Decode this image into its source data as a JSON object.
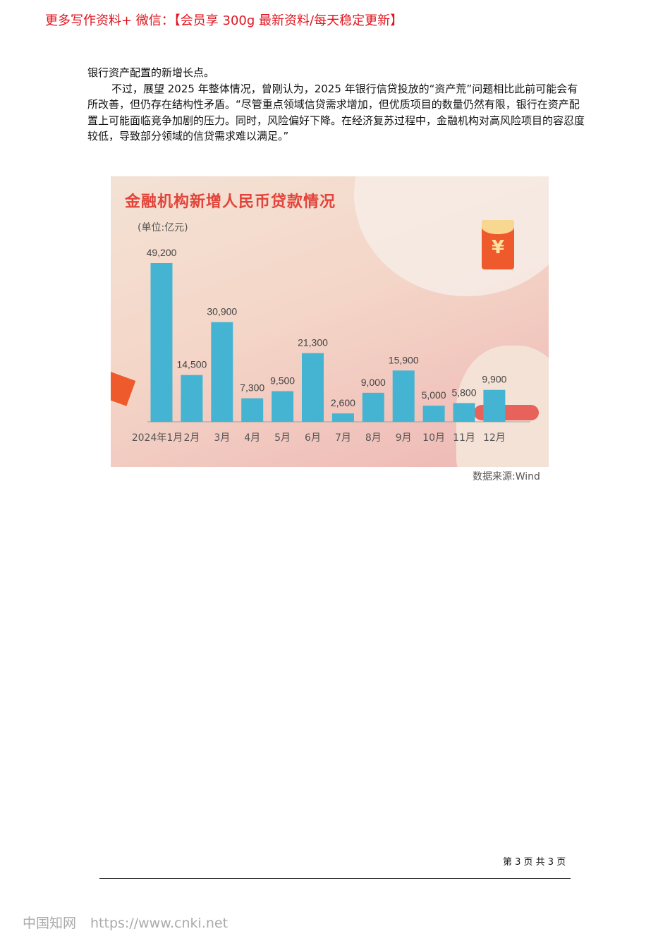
{
  "banner": "更多写作资料+ 微信：【会员享 300g 最新资料/每天稳定更新】",
  "body": {
    "p1": "银行资产配置的新增长点。",
    "p2": "不过，展望 2025 年整体情况，曾刚认为，2025 年银行信贷投放的“资产荒”问题相比此前可能会有所改善，但仍存在结构性矛盾。“尽管重点领域信贷需求增加，但优质项目的数量仍然有限，银行在资产配置上可能面临竞争加剧的压力。同时，风险偏好下降。在经济复苏过程中，金融机构对高风险项目的容忍度较低，导致部分领域的信贷需求难以满足。”"
  },
  "chart_data": {
    "type": "bar",
    "title": "金融机构新增人民币贷款情况",
    "unit_label": "(单位:亿元)",
    "categories": [
      "2024年1月",
      "2月",
      "3月",
      "4月",
      "5月",
      "6月",
      "7月",
      "8月",
      "9月",
      "10月",
      "11月",
      "12月"
    ],
    "values": [
      49200,
      14500,
      30900,
      7300,
      9500,
      21300,
      2600,
      9000,
      15900,
      5000,
      5800,
      9900
    ],
    "labels": [
      "49,200",
      "14,500",
      "30,900",
      "7,300",
      "9,500",
      "21,300",
      "2,600",
      "9,000",
      "15,900",
      "5,000",
      "5,800",
      "9,900"
    ],
    "bar_color": "#45b4d3",
    "title_color": "#e2443a",
    "envelope_symbol": "¥",
    "source": "数据来源:Wind"
  },
  "footer": {
    "page": "第 3 页 共 3 页"
  },
  "watermark": {
    "site": "中国知网",
    "url": "https://www.cnki.net"
  }
}
